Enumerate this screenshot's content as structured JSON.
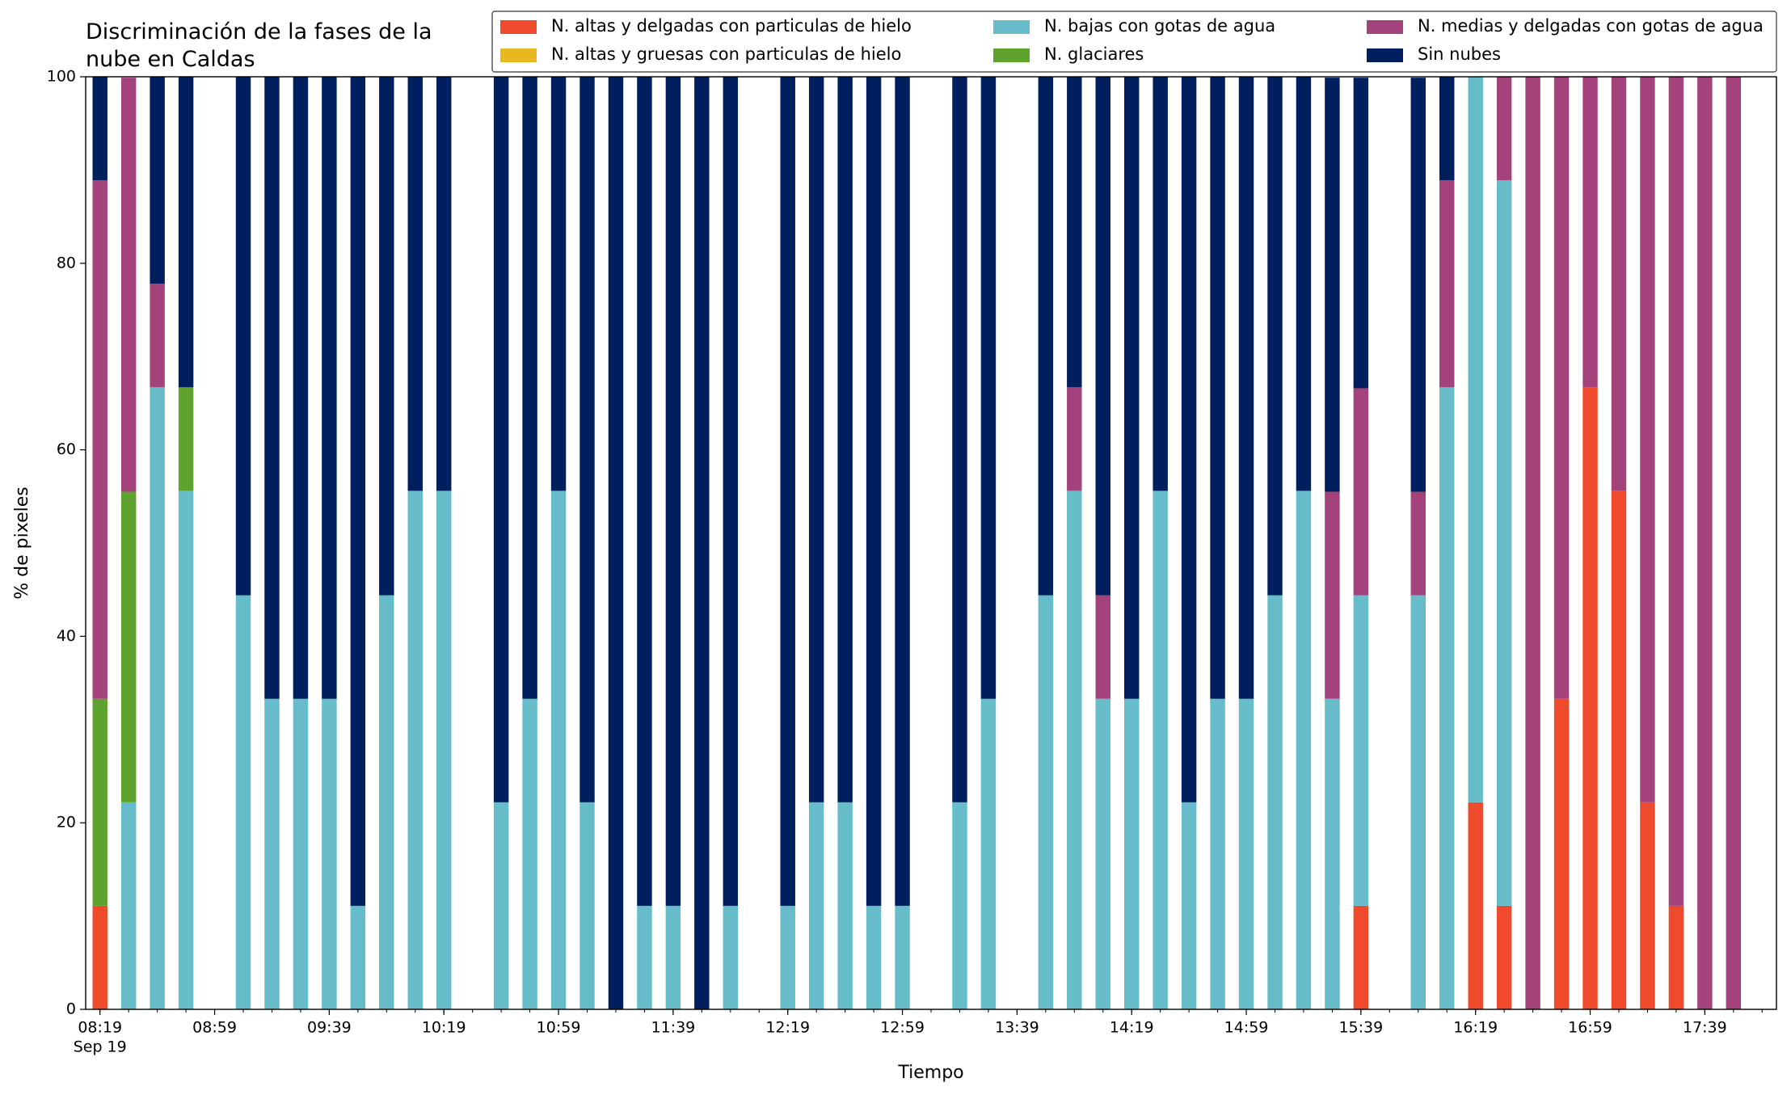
{
  "chart_data": {
    "type": "stacked_bar",
    "title": "Discriminación de la fases de la\nnube en Caldas",
    "xlabel": "Tiempo",
    "ylabel": "% de pixeles",
    "x_date_label": "Sep 19",
    "x": [
      "08:19",
      "08:29",
      "08:39",
      "08:49",
      "09:09",
      "09:19",
      "09:29",
      "09:39",
      "09:49",
      "09:59",
      "10:09",
      "10:19",
      "10:39",
      "10:49",
      "10:59",
      "11:09",
      "11:19",
      "11:29",
      "11:39",
      "11:49",
      "11:59",
      "12:19",
      "12:29",
      "12:39",
      "12:49",
      "12:59",
      "13:19",
      "13:29",
      "13:49",
      "13:59",
      "14:09",
      "14:19",
      "14:29",
      "14:39",
      "14:49",
      "14:59",
      "15:09",
      "15:19",
      "15:29",
      "15:39",
      "15:59",
      "16:09",
      "16:19",
      "16:29",
      "16:39",
      "16:49",
      "16:59",
      "17:09",
      "17:19",
      "17:29",
      "17:39",
      "17:49"
    ],
    "xlim": [
      "08:14",
      "18:04"
    ],
    "xticks": [
      "08:19",
      "08:59",
      "09:39",
      "10:19",
      "10:59",
      "11:39",
      "12:19",
      "12:59",
      "13:39",
      "14:19",
      "14:59",
      "15:39",
      "16:19",
      "16:59",
      "17:39"
    ],
    "ylim": [
      0,
      100
    ],
    "yticks": [
      0,
      20,
      40,
      60,
      80,
      100
    ],
    "legend": "upper right",
    "series": [
      {
        "name": "N. altas y delgadas con particulas de hielo",
        "color": "#ef4a2b",
        "values": [
          11.1,
          0,
          0,
          0,
          0,
          0,
          0,
          0,
          0,
          0,
          0,
          0,
          0,
          0,
          0,
          0,
          0,
          0,
          0,
          0,
          0,
          0,
          0,
          0,
          0,
          0,
          0,
          0,
          0,
          0,
          0,
          0,
          0,
          0,
          0,
          0,
          0,
          0,
          0,
          11.1,
          0,
          0,
          22.2,
          11.1,
          0,
          33.3,
          66.7,
          55.6,
          22.2,
          11.1,
          0,
          0
        ]
      },
      {
        "name": "N. altas y gruesas con particulas de hielo",
        "color": "#e8b820",
        "values": [
          0,
          0,
          0,
          0,
          0,
          0,
          0,
          0,
          0,
          0,
          0,
          0,
          0,
          0,
          0,
          0,
          0,
          0,
          0,
          0,
          0,
          0,
          0,
          0,
          0,
          0,
          0,
          0,
          0,
          0,
          0,
          0,
          0,
          0,
          0,
          0,
          0,
          0,
          0,
          0,
          0,
          0,
          0,
          0,
          0,
          0,
          0,
          0,
          0,
          0,
          0,
          0
        ]
      },
      {
        "name": "N. bajas con gotas de agua",
        "color": "#66bcc9",
        "values": [
          0,
          22.2,
          66.7,
          55.6,
          44.4,
          33.3,
          33.3,
          33.3,
          11.1,
          44.4,
          55.6,
          55.6,
          22.2,
          33.3,
          55.6,
          22.2,
          0,
          11.1,
          11.1,
          0,
          11.1,
          11.1,
          22.2,
          22.2,
          11.1,
          11.1,
          22.2,
          33.3,
          44.4,
          55.6,
          33.3,
          33.3,
          55.6,
          22.2,
          33.3,
          33.3,
          44.4,
          55.6,
          33.3,
          33.3,
          44.4,
          66.7,
          77.8,
          77.8,
          0,
          0,
          0,
          0,
          0,
          0,
          0,
          0
        ]
      },
      {
        "name": "N. glaciares",
        "color": "#5fa32e",
        "values": [
          22.2,
          33.3,
          0,
          11.1,
          0,
          0,
          0,
          0,
          0,
          0,
          0,
          0,
          0,
          0,
          0,
          0,
          0,
          0,
          0,
          0,
          0,
          0,
          0,
          0,
          0,
          0,
          0,
          0,
          0,
          0,
          0,
          0,
          0,
          0,
          0,
          0,
          0,
          0,
          0,
          0,
          0,
          0,
          0,
          0,
          0,
          0,
          0,
          0,
          0,
          0,
          0,
          0
        ]
      },
      {
        "name": "N. medias y delgadas con gotas de agua",
        "color": "#a4427b",
        "values": [
          55.6,
          44.4,
          11.1,
          0,
          0,
          0,
          0,
          0,
          0,
          0,
          0,
          0,
          0,
          0,
          0,
          0,
          0,
          0,
          0,
          0,
          0,
          0,
          0,
          0,
          0,
          0,
          0,
          0,
          0,
          11.1,
          11.1,
          0,
          0,
          0,
          0,
          0,
          0,
          0,
          22.2,
          22.2,
          11.1,
          22.2,
          0,
          11.1,
          100,
          66.7,
          33.3,
          44.4,
          77.8,
          88.9,
          100,
          100
        ]
      },
      {
        "name": "Sin nubes",
        "color": "#001f5e",
        "values": [
          11.1,
          0,
          22.2,
          33.3,
          55.6,
          66.7,
          66.7,
          66.7,
          88.9,
          55.6,
          44.4,
          44.4,
          77.8,
          66.7,
          44.4,
          77.8,
          100,
          88.9,
          88.9,
          100,
          88.9,
          88.9,
          77.8,
          77.8,
          88.9,
          88.9,
          77.8,
          66.7,
          55.6,
          33.3,
          55.6,
          66.7,
          44.4,
          77.8,
          66.7,
          66.7,
          55.6,
          44.4,
          44.4,
          33.3,
          44.4,
          11.1,
          0,
          0,
          0,
          0,
          0,
          0,
          0,
          0,
          0,
          0
        ]
      }
    ]
  }
}
